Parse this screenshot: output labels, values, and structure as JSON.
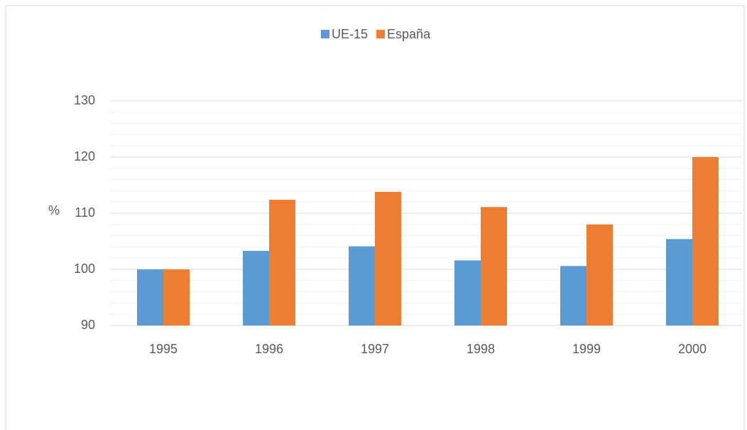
{
  "chart_data": {
    "type": "bar",
    "y_label": "%",
    "categories": [
      "1995",
      "1996",
      "1997",
      "1998",
      "1999",
      "2000"
    ],
    "series": [
      {
        "name": "UE-15",
        "color": "#5b9bd5",
        "values": [
          100,
          103.3,
          104.1,
          101.6,
          100.6,
          105.4
        ]
      },
      {
        "name": "España",
        "color": "#ed7d31",
        "values": [
          100,
          112.4,
          113.8,
          111.1,
          108,
          120
        ]
      }
    ],
    "ylim": [
      90,
      130
    ],
    "yticks": [
      90,
      100,
      110,
      120,
      130
    ],
    "minor_yticks": [
      92,
      94,
      96,
      98,
      102,
      104,
      106,
      108,
      112,
      114,
      116,
      118,
      122,
      124,
      126,
      128
    ],
    "grid": true,
    "legend": "top"
  }
}
